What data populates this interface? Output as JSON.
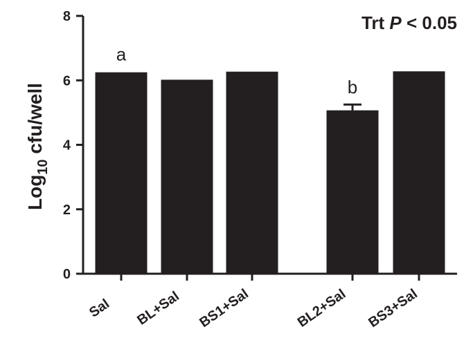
{
  "chart_data": {
    "type": "bar",
    "categories": [
      "Sal",
      "BL+Sal",
      "BS1+Sal",
      "BL2+Sal",
      "BS3+Sal"
    ],
    "values": [
      6.25,
      6.02,
      6.27,
      5.07,
      6.28
    ],
    "errors": [
      0.02,
      0.02,
      0.02,
      0.18,
      0.02
    ],
    "significance_letters": [
      "a",
      "",
      "",
      "b",
      ""
    ],
    "title": "",
    "xlabel": "",
    "ylabel": {
      "prefix": "Log",
      "subscript": "10",
      "suffix": " cfu/well"
    },
    "ylim": [
      0,
      8
    ],
    "yticks": [
      "0",
      "2",
      "4",
      "6",
      "8"
    ],
    "annotation": {
      "prefix": "Trt ",
      "italic": "P",
      "suffix": " < 0.05"
    },
    "grid": false,
    "bar_color": "#231f20"
  }
}
